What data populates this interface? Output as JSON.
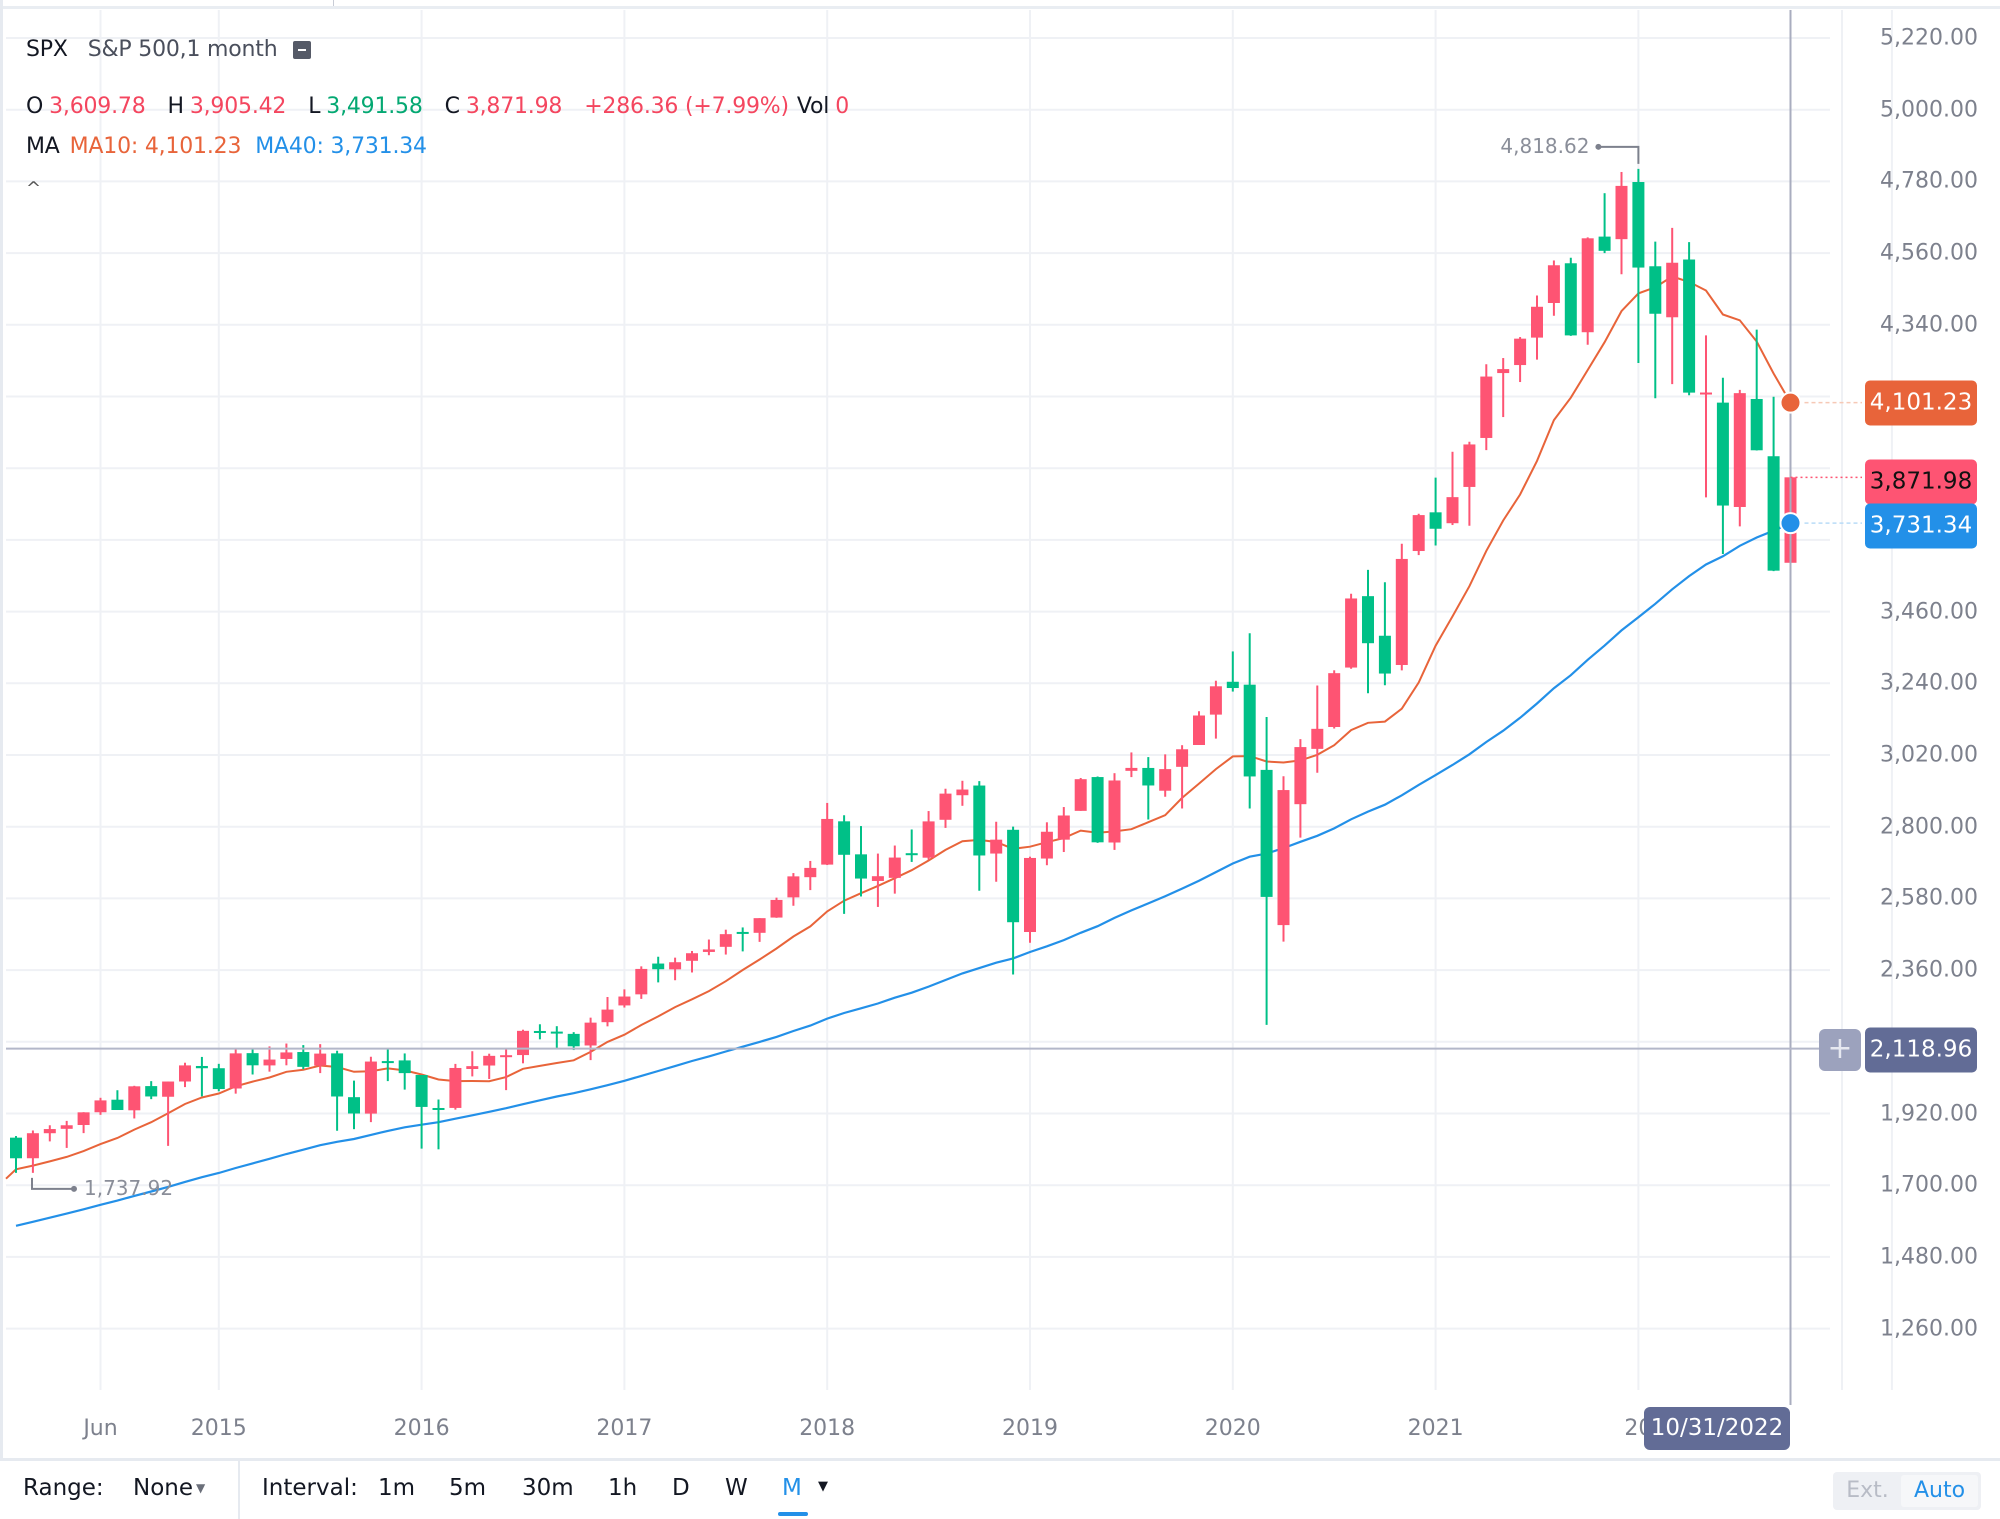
{
  "header": {
    "symbol": "SPX",
    "description": "S&P 500,1 month",
    "ohlc": {
      "open_label": "O",
      "open": "3,609.78",
      "high_label": "H",
      "high": "3,905.42",
      "low_label": "L",
      "low": "3,491.58",
      "close_label": "C",
      "close": "3,871.98",
      "change": "+286.36 (+7.99%)",
      "vol_label": "Vol",
      "vol": "0"
    },
    "ma": {
      "label": "MA",
      "ma10": "MA10: 4,101.23",
      "ma40": "MA40: 3,731.34"
    },
    "collapse_icon": "^"
  },
  "price_tags": {
    "ma10": "4,101.23",
    "close": "3,871.98",
    "ma40": "3,731.34",
    "crosshair": "2,118.96",
    "plus": "+"
  },
  "annotations": {
    "max": "4,818.62",
    "min": "1,737.92"
  },
  "crosshair_date": "10/31/2022",
  "toolbar": {
    "range_label": "Range:",
    "range_value": "None",
    "interval_label": "Interval:",
    "intervals": [
      "1m",
      "5m",
      "30m",
      "1h",
      "D",
      "W",
      "M"
    ],
    "active_interval": "M",
    "ext_label": "Ext.",
    "auto_label": "Auto"
  },
  "colors": {
    "up": "#fe5473",
    "down": "#00c087",
    "ma10": "#e8643a",
    "ma40": "#2390e8",
    "crosshair": "#626c96",
    "grid": "#eff1f5"
  },
  "chart_data": {
    "type": "candlestick",
    "title": "SPX S&P 500, 1 month",
    "xlabel": "",
    "ylabel": "",
    "ylim": [
      1150,
      5260
    ],
    "y_ticks": [
      "5,220.00",
      "5,000.00",
      "4,780.00",
      "4,560.00",
      "4,340.00",
      "4,101.23",
      "3,871.98",
      "3,731.34",
      "3,460.00",
      "3,240.00",
      "3,020.00",
      "2,800.00",
      "2,580.00",
      "2,360.00",
      "2,118.96",
      "1,920.00",
      "1,700.00",
      "1,480.00",
      "1,260.00"
    ],
    "axis_ticks": [
      5220,
      5000,
      4780,
      4560,
      4340,
      4120,
      3900,
      3680,
      3460,
      3240,
      3020,
      2800,
      2580,
      2360,
      2140,
      1920,
      1700,
      1480,
      1260
    ],
    "x_tick_labels": [
      {
        "label": "Jun",
        "index": 5
      },
      {
        "label": "2015",
        "index": 12
      },
      {
        "label": "2016",
        "index": 24
      },
      {
        "label": "2017",
        "index": 36
      },
      {
        "label": "2018",
        "index": 48
      },
      {
        "label": "2019",
        "index": 60
      },
      {
        "label": "2020",
        "index": 72
      },
      {
        "label": "2021",
        "index": 84
      },
      {
        "label": "20",
        "index": 96
      }
    ],
    "start": "2014-01",
    "end": "2022-10",
    "legend": [
      "MA10",
      "MA40"
    ],
    "grid": true,
    "ohlc": [
      [
        1845.9,
        1850.8,
        1737.9,
        1782.6
      ],
      [
        1782.7,
        1867.9,
        1737.9,
        1859.5
      ],
      [
        1859.5,
        1883.9,
        1834.4,
        1872.3
      ],
      [
        1873.0,
        1897.3,
        1814.4,
        1883.9
      ],
      [
        1884.7,
        1924.0,
        1859.8,
        1923.6
      ],
      [
        1923.9,
        1968.2,
        1915.9,
        1960.2
      ],
      [
        1962.3,
        1991.4,
        1930.7,
        1930.7
      ],
      [
        1929.8,
        2005.0,
        1904.8,
        2003.4
      ],
      [
        2004.1,
        2019.3,
        1964.0,
        1972.3
      ],
      [
        1971.4,
        2018.2,
        1820.7,
        2018.1
      ],
      [
        2018.2,
        2075.8,
        2001.0,
        2067.6
      ],
      [
        2065.8,
        2093.6,
        1972.6,
        2058.9
      ],
      [
        2058.9,
        2072.4,
        1988.1,
        1995.0
      ],
      [
        1996.7,
        2119.6,
        1980.9,
        2104.5
      ],
      [
        2105.2,
        2117.5,
        2039.7,
        2067.9
      ],
      [
        2067.6,
        2125.9,
        2048.4,
        2085.5
      ],
      [
        2087.4,
        2134.7,
        2067.9,
        2107.4
      ],
      [
        2108.6,
        2129.9,
        2056.3,
        2063.1
      ],
      [
        2067.0,
        2132.8,
        2044.0,
        2103.8
      ],
      [
        2104.5,
        2112.7,
        1867.0,
        1972.2
      ],
      [
        1970.1,
        2020.9,
        1871.9,
        1920.0
      ],
      [
        1919.7,
        2094.3,
        1893.7,
        2079.4
      ],
      [
        2080.8,
        2116.5,
        2019.4,
        2080.4
      ],
      [
        2082.9,
        2104.3,
        1993.3,
        2043.9
      ],
      [
        2038.2,
        2038.2,
        1812.3,
        1940.2
      ],
      [
        1936.9,
        1962.9,
        1810.1,
        1932.2
      ],
      [
        1937.1,
        2072.2,
        1931.8,
        2059.7
      ],
      [
        2056.6,
        2111.1,
        2033.8,
        2065.3
      ],
      [
        2067.2,
        2103.5,
        2025.9,
        2096.9
      ],
      [
        2093.9,
        2120.6,
        1991.7,
        2098.9
      ],
      [
        2099.3,
        2177.1,
        2074.0,
        2173.6
      ],
      [
        2173.2,
        2193.8,
        2147.6,
        2170.9
      ],
      [
        2171.3,
        2187.9,
        2119.1,
        2168.3
      ],
      [
        2164.3,
        2169.6,
        2114.7,
        2126.2
      ],
      [
        2128.7,
        2214.1,
        2083.8,
        2198.8
      ],
      [
        2200.2,
        2277.5,
        2187.4,
        2238.8
      ],
      [
        2251.6,
        2300.9,
        2245.1,
        2278.9
      ],
      [
        2285.6,
        2371.5,
        2271.7,
        2363.6
      ],
      [
        2380.1,
        2401.0,
        2322.3,
        2362.7
      ],
      [
        2362.3,
        2398.2,
        2328.9,
        2384.2
      ],
      [
        2388.5,
        2418.7,
        2352.7,
        2411.8
      ],
      [
        2415.7,
        2453.8,
        2405.7,
        2423.4
      ],
      [
        2431.4,
        2484.0,
        2407.7,
        2470.3
      ],
      [
        2477.1,
        2490.9,
        2417.4,
        2471.7
      ],
      [
        2474.4,
        2519.4,
        2446.6,
        2519.4
      ],
      [
        2521.2,
        2582.3,
        2520.4,
        2575.3
      ],
      [
        2583.2,
        2657.7,
        2557.4,
        2647.6
      ],
      [
        2645.1,
        2694.9,
        2605.5,
        2673.6
      ],
      [
        2683.7,
        2872.9,
        2682.4,
        2823.8
      ],
      [
        2816.5,
        2835.0,
        2532.7,
        2713.8
      ],
      [
        2715.2,
        2801.9,
        2585.9,
        2640.9
      ],
      [
        2633.5,
        2717.5,
        2553.8,
        2648.1
      ],
      [
        2643.0,
        2742.2,
        2594.6,
        2705.3
      ],
      [
        2718.7,
        2791.5,
        2691.9,
        2718.4
      ],
      [
        2704.9,
        2848.0,
        2698.9,
        2816.3
      ],
      [
        2821.2,
        2916.5,
        2796.3,
        2901.5
      ],
      [
        2896.6,
        2940.9,
        2864.1,
        2914.0
      ],
      [
        2926.3,
        2939.9,
        2603.5,
        2711.7
      ],
      [
        2717.6,
        2815.2,
        2631.1,
        2760.2
      ],
      [
        2790.5,
        2800.2,
        2346.6,
        2506.9
      ],
      [
        2476.9,
        2708.0,
        2443.9,
        2704.1
      ],
      [
        2702.3,
        2813.5,
        2681.8,
        2784.5
      ],
      [
        2760.2,
        2860.3,
        2722.3,
        2834.4
      ],
      [
        2848.6,
        2949.5,
        2848.6,
        2945.8
      ],
      [
        2952.3,
        2954.1,
        2750.5,
        2752.1
      ],
      [
        2751.5,
        2964.2,
        2728.8,
        2941.8
      ],
      [
        2971.4,
        3027.9,
        2952.2,
        2980.4
      ],
      [
        2980.3,
        3013.6,
        2822.1,
        2926.5
      ],
      [
        2910.4,
        3021.9,
        2891.9,
        2976.7
      ],
      [
        2983.7,
        3050.1,
        2855.9,
        3037.6
      ],
      [
        3050.7,
        3154.3,
        3050.7,
        3141.2
      ],
      [
        3143.9,
        3247.9,
        3070.3,
        3230.8
      ],
      [
        3244.7,
        3337.8,
        3214.6,
        3225.5
      ],
      [
        3235.7,
        3393.5,
        2855.8,
        2954.2
      ],
      [
        2974.3,
        3136.7,
        2191.9,
        2584.6
      ],
      [
        2498.1,
        2954.9,
        2447.5,
        2912.4
      ],
      [
        2869.1,
        3068.7,
        2766.6,
        3044.3
      ],
      [
        3038.8,
        3233.1,
        2965.7,
        3100.3
      ],
      [
        3105.9,
        3279.9,
        3101.2,
        3271.1
      ],
      [
        3288.3,
        3514.8,
        3284.5,
        3500.3
      ],
      [
        3507.4,
        3588.1,
        3209.5,
        3363.0
      ],
      [
        3385.9,
        3549.9,
        3233.9,
        3269.9
      ],
      [
        3296.2,
        3668.1,
        3279.7,
        3621.6
      ],
      [
        3645.9,
        3760.2,
        3633.4,
        3756.1
      ],
      [
        3764.6,
        3870.9,
        3662.7,
        3714.2
      ],
      [
        3731.2,
        3950.4,
        3725.6,
        3811.2
      ],
      [
        3842.5,
        3981.0,
        3723.3,
        3972.9
      ],
      [
        3992.8,
        4218.8,
        3955.3,
        4181.2
      ],
      [
        4191.9,
        4238.0,
        4056.9,
        4204.1
      ],
      [
        4216.5,
        4302.4,
        4164.4,
        4297.5
      ],
      [
        4300.7,
        4429.9,
        4233.1,
        4395.3
      ],
      [
        4406.9,
        4537.4,
        4367.7,
        4522.7
      ],
      [
        4528.8,
        4545.9,
        4305.9,
        4307.5
      ],
      [
        4317.2,
        4608.1,
        4278.9,
        4605.4
      ],
      [
        4610.6,
        4743.8,
        4560.0,
        4567.0
      ],
      [
        4602.8,
        4808.9,
        4495.1,
        4766.2
      ],
      [
        4778.1,
        4818.6,
        4222.6,
        4515.6
      ],
      [
        4519.6,
        4595.3,
        4114.7,
        4373.9
      ],
      [
        4363.1,
        4637.3,
        4157.9,
        4530.4
      ],
      [
        4540.3,
        4593.5,
        4124.0,
        4131.9
      ],
      [
        4130.6,
        4307.7,
        3810.3,
        4132.2
      ],
      [
        4101.2,
        4177.5,
        3636.9,
        3785.4
      ],
      [
        3781.0,
        4140.2,
        3721.6,
        4130.3
      ],
      [
        4112.4,
        4325.3,
        3954.5,
        3955.0
      ],
      [
        3936.7,
        4119.3,
        3584.1,
        3585.6
      ],
      [
        3609.8,
        3905.4,
        3491.6,
        3872.0
      ]
    ],
    "ma10_last": 4101.23,
    "ma40_last": 3731.34,
    "max_high": 4818.62,
    "min_low": 1737.92
  }
}
